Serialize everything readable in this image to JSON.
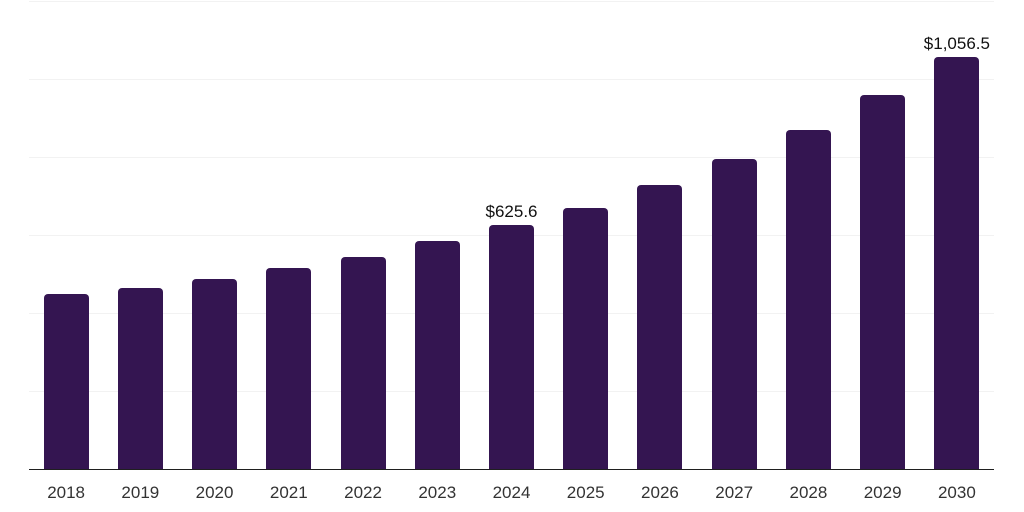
{
  "chart_data": {
    "type": "bar",
    "title": "",
    "xlabel": "",
    "ylabel": "",
    "categories": [
      "2018",
      "2019",
      "2020",
      "2021",
      "2022",
      "2023",
      "2024",
      "2025",
      "2026",
      "2027",
      "2028",
      "2029",
      "2030"
    ],
    "values": [
      448,
      465,
      488,
      516,
      544,
      585,
      625.6,
      670,
      729,
      795,
      870,
      958,
      1056.5
    ],
    "annotations": [
      {
        "index": 6,
        "text": "$625.6"
      },
      {
        "index": 12,
        "text": "$1,056.5"
      }
    ],
    "ylim": [
      0,
      1200
    ],
    "ytick_step": 200,
    "ytick_labels_visible": false,
    "grid": "horizontal",
    "legend": "none",
    "colors": {
      "bar": "#341551",
      "grid_line": "#f2f2f2",
      "axis_line": "#1f1f1f",
      "tick_label": "#333333",
      "annotation_text": "#111111"
    }
  }
}
